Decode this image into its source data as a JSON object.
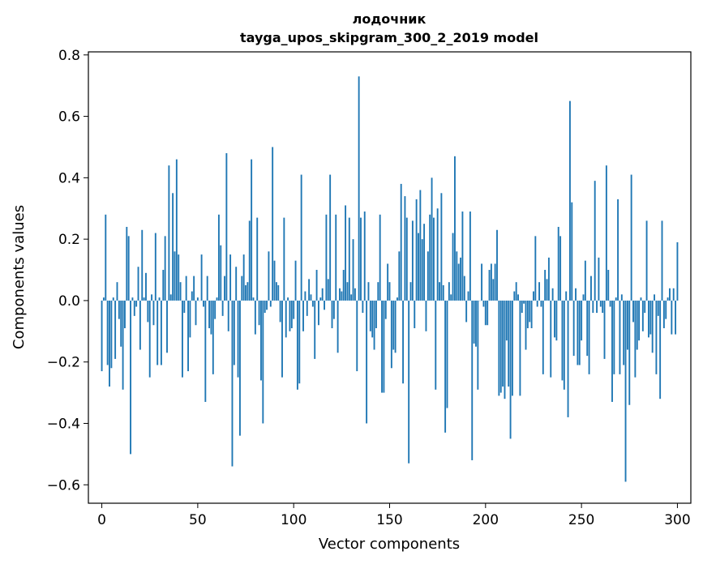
{
  "chart_data": {
    "type": "bar",
    "title": "лодочник",
    "subtitle": "tayga_upos_skipgram_300_2_2019 model",
    "xlabel": "Vector components",
    "ylabel": "Components values",
    "xlim": [
      -7,
      307
    ],
    "ylim": [
      -0.66,
      0.81
    ],
    "xticks": [
      0,
      50,
      100,
      150,
      200,
      250,
      300
    ],
    "xtick_labels": [
      "0",
      "50",
      "100",
      "150",
      "200",
      "250",
      "300"
    ],
    "yticks": [
      0.8,
      0.6,
      0.4,
      0.2,
      0.0,
      -0.2,
      -0.4,
      -0.6
    ],
    "ytick_labels": [
      "0.8",
      "0.6",
      "0.4",
      "0.2",
      "0.0",
      "−0.2",
      "−0.4",
      "−0.6"
    ],
    "bar_color": "#1f77b4",
    "grid": false,
    "values": [
      -0.23,
      0.01,
      0.28,
      -0.21,
      -0.28,
      -0.22,
      0.01,
      -0.19,
      0.06,
      -0.06,
      -0.15,
      -0.29,
      -0.09,
      0.24,
      0.21,
      -0.5,
      0.01,
      -0.05,
      -0.02,
      0.11,
      -0.16,
      0.23,
      0.01,
      0.09,
      -0.07,
      -0.25,
      0.02,
      -0.08,
      0.22,
      -0.21,
      0.01,
      -0.21,
      0.1,
      0.21,
      -0.17,
      0.44,
      0.02,
      0.35,
      0.16,
      0.46,
      0.15,
      0.06,
      -0.25,
      -0.04,
      0.08,
      -0.23,
      -0.12,
      0.03,
      0.08,
      -0.08,
      0.01,
      0.0,
      0.15,
      -0.02,
      -0.33,
      0.08,
      -0.09,
      -0.11,
      -0.24,
      -0.06,
      0.01,
      0.28,
      0.18,
      -0.05,
      0.08,
      0.48,
      -0.1,
      0.15,
      -0.54,
      -0.21,
      0.11,
      -0.25,
      -0.44,
      0.08,
      0.15,
      0.05,
      0.06,
      0.26,
      0.46,
      0.01,
      -0.11,
      0.27,
      -0.08,
      -0.26,
      -0.4,
      -0.04,
      -0.03,
      0.16,
      -0.02,
      0.5,
      0.13,
      0.06,
      0.05,
      -0.07,
      -0.25,
      0.27,
      -0.12,
      0.01,
      -0.1,
      -0.09,
      -0.06,
      0.13,
      -0.29,
      -0.27,
      0.41,
      -0.1,
      0.03,
      -0.05,
      0.07,
      0.02,
      -0.02,
      -0.19,
      0.1,
      -0.08,
      0.01,
      0.04,
      -0.03,
      0.28,
      0.07,
      0.41,
      -0.09,
      -0.06,
      0.28,
      -0.17,
      0.04,
      0.03,
      0.1,
      0.31,
      0.06,
      0.27,
      0.02,
      0.2,
      0.04,
      -0.23,
      0.73,
      0.27,
      -0.04,
      0.29,
      -0.4,
      0.06,
      -0.1,
      -0.12,
      -0.16,
      -0.09,
      0.06,
      0.28,
      -0.3,
      -0.3,
      -0.06,
      0.12,
      0.06,
      -0.22,
      -0.16,
      -0.17,
      0.01,
      0.16,
      0.38,
      -0.27,
      0.34,
      0.27,
      -0.53,
      0.06,
      0.26,
      -0.09,
      0.33,
      0.22,
      0.36,
      0.2,
      0.25,
      -0.1,
      0.16,
      0.28,
      0.4,
      0.27,
      -0.29,
      0.3,
      0.06,
      0.35,
      0.05,
      -0.43,
      -0.35,
      0.06,
      0.02,
      0.22,
      0.47,
      0.16,
      0.12,
      0.14,
      0.29,
      0.08,
      -0.07,
      0.03,
      0.29,
      -0.52,
      -0.14,
      -0.15,
      -0.29,
      0.0,
      0.12,
      -0.02,
      -0.08,
      -0.08,
      0.1,
      0.12,
      0.07,
      0.12,
      0.23,
      -0.31,
      -0.3,
      -0.28,
      -0.32,
      -0.13,
      -0.28,
      -0.45,
      -0.31,
      0.03,
      0.06,
      0.02,
      -0.31,
      -0.04,
      -0.01,
      -0.16,
      -0.09,
      -0.07,
      -0.09,
      0.03,
      0.21,
      -0.02,
      0.06,
      -0.02,
      -0.24,
      0.1,
      0.07,
      0.14,
      -0.25,
      0.04,
      -0.12,
      -0.13,
      0.24,
      0.21,
      -0.26,
      -0.29,
      0.03,
      -0.38,
      0.65,
      0.32,
      -0.18,
      0.04,
      -0.21,
      -0.21,
      -0.13,
      0.02,
      0.13,
      -0.18,
      -0.24,
      0.08,
      -0.04,
      0.39,
      -0.04,
      0.14,
      -0.02,
      -0.04,
      -0.19,
      0.44,
      0.1,
      -0.02,
      -0.33,
      -0.24,
      0.01,
      0.33,
      -0.24,
      0.02,
      -0.21,
      -0.59,
      -0.16,
      -0.34,
      0.41,
      -0.07,
      -0.25,
      -0.16,
      -0.13,
      0.01,
      -0.1,
      -0.04,
      0.26,
      -0.12,
      -0.11,
      -0.17,
      0.02,
      -0.24,
      -0.05,
      -0.32,
      0.26,
      -0.09,
      -0.06,
      0.01,
      0.04,
      -0.11,
      0.04,
      -0.11,
      0.19
    ]
  }
}
